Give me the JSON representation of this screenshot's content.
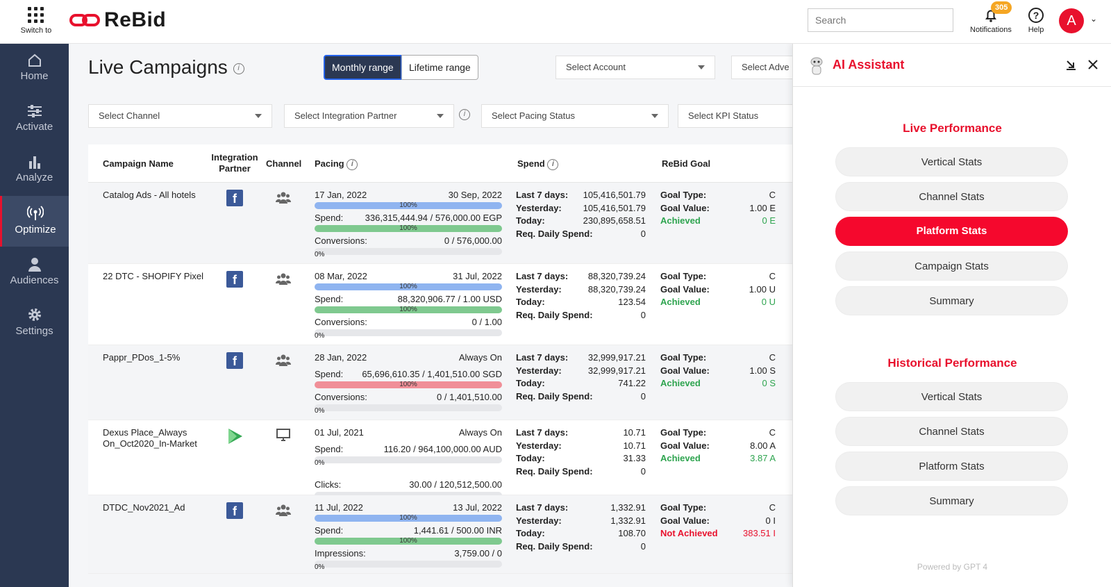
{
  "topbar": {
    "switch_label": "Switch to",
    "logo": "ReBid",
    "search_placeholder": "Search",
    "notifications_label": "Notifications",
    "notifications_count": "305",
    "help_label": "Help",
    "avatar_letter": "A"
  },
  "sidebar": [
    {
      "label": "Home",
      "icon": "home-icon"
    },
    {
      "label": "Activate",
      "icon": "sliders-icon"
    },
    {
      "label": "Analyze",
      "icon": "bar-chart-icon"
    },
    {
      "label": "Optimize",
      "icon": "broadcast-icon",
      "active": true
    },
    {
      "label": "Audiences",
      "icon": "user-icon"
    },
    {
      "label": "Settings",
      "icon": "gear-icon"
    }
  ],
  "main": {
    "title": "Live Campaigns",
    "monthly_range": "Monthly range",
    "lifetime_range": "Lifetime range",
    "filters": {
      "account": "Select Account",
      "advertiser": "Select Adve",
      "channel": "Select Channel",
      "integration": "Select Integration Partner",
      "pacing": "Select Pacing Status",
      "kpi": "Select KPI Status"
    },
    "columns": {
      "name": "Campaign Name",
      "integration": "Integration Partner",
      "channel": "Channel",
      "pacing": "Pacing",
      "spend": "Spend",
      "goal": "ReBid Goal"
    }
  },
  "labels": {
    "spend": "Spend:",
    "last7": "Last 7 days:",
    "yesterday": "Yesterday:",
    "today": "Today:",
    "req": "Req. Daily Spend:",
    "goal_type": "Goal Type:",
    "goal_value": "Goal Value:"
  },
  "rows": [
    {
      "name": "Catalog Ads - All hotels",
      "partner": "facebook",
      "channel": "social",
      "start": "17 Jan, 2022",
      "end": "30 Sep, 2022",
      "bar1": "100%",
      "bar1_color": "blue",
      "spend_text": "336,315,444.94 / 576,000.00 EGP",
      "bar2": "100%",
      "bar2_color": "green",
      "metric": "Conversions:",
      "metric_val": "0 / 576,000.00",
      "bar3": "0%",
      "last7": "105,416,501.79",
      "yesterday": "105,416,501.79",
      "today": "230,895,658.51",
      "req": "0",
      "goal_type": "C",
      "goal_value": "1.00 E",
      "status": "Achieved",
      "status_val": "0 E",
      "achieved": true
    },
    {
      "name": "22 DTC - SHOPIFY Pixel",
      "partner": "facebook",
      "channel": "social",
      "start": "08 Mar, 2022",
      "end": "31 Jul, 2022",
      "bar1": "100%",
      "bar1_color": "blue",
      "spend_text": "88,320,906.77 / 1.00 USD",
      "bar2": "100%",
      "bar2_color": "green",
      "metric": "Conversions:",
      "metric_val": "0 / 1.00",
      "bar3": "0%",
      "last7": "88,320,739.24",
      "yesterday": "88,320,739.24",
      "today": "123.54",
      "req": "0",
      "goal_type": "C",
      "goal_value": "1.00 U",
      "status": "Achieved",
      "status_val": "0 U",
      "achieved": true
    },
    {
      "name": "Pappr_PDos_1-5%",
      "partner": "facebook",
      "channel": "social",
      "start": "28 Jan, 2022",
      "end": "Always On",
      "bar1": "",
      "bar1_color": "none",
      "spend_text": "65,696,610.35 / 1,401,510.00 SGD",
      "bar2": "100%",
      "bar2_color": "red",
      "metric": "Conversions:",
      "metric_val": "0 / 1,401,510.00",
      "bar3": "0%",
      "last7": "32,999,917.21",
      "yesterday": "32,999,917.21",
      "today": "741.22",
      "req": "0",
      "goal_type": "C",
      "goal_value": "1.00 S",
      "status": "Achieved",
      "status_val": "0 S",
      "achieved": true
    },
    {
      "name": "Dexus Place_Always On_Oct2020_In-Market",
      "partner": "google-play",
      "channel": "display",
      "start": "01 Jul, 2021",
      "end": "Always On",
      "bar1": "",
      "bar1_color": "none",
      "spend_text": "116.20 / 964,100,000.00 AUD",
      "bar2": "0%",
      "bar2_color": "empty",
      "metric": "Clicks:",
      "metric_val": "30.00 / 120,512,500.00",
      "bar3": "0%",
      "last7": "10.71",
      "yesterday": "10.71",
      "today": "31.33",
      "req": "0",
      "goal_type": "C",
      "goal_value": "8.00 A",
      "status": "Achieved",
      "status_val": "3.87 A",
      "achieved": true
    },
    {
      "name": "DTDC_Nov2021_Ad",
      "partner": "facebook",
      "channel": "social",
      "start": "11 Jul, 2022",
      "end": "13 Jul, 2022",
      "bar1": "100%",
      "bar1_color": "blue",
      "spend_text": "1,441.61 / 500.00 INR",
      "bar2": "100%",
      "bar2_color": "green",
      "metric": "Impressions:",
      "metric_val": "3,759.00 / 0",
      "bar3": "0%",
      "last7": "1,332.91",
      "yesterday": "1,332.91",
      "today": "108.70",
      "req": "0",
      "goal_type": "C",
      "goal_value": "0 I",
      "status": "Not Achieved",
      "status_val": "383.51 I",
      "achieved": false
    }
  ],
  "ai": {
    "title": "AI Assistant",
    "live_heading": "Live Performance",
    "live_buttons": [
      "Vertical Stats",
      "Channel Stats",
      "Platform Stats",
      "Campaign Stats",
      "Summary"
    ],
    "active_button": "Platform Stats",
    "historical_heading": "Historical Performance",
    "historical_buttons": [
      "Vertical Stats",
      "Channel Stats",
      "Platform Stats",
      "Summary"
    ],
    "powered": "Powered by GPT 4"
  }
}
